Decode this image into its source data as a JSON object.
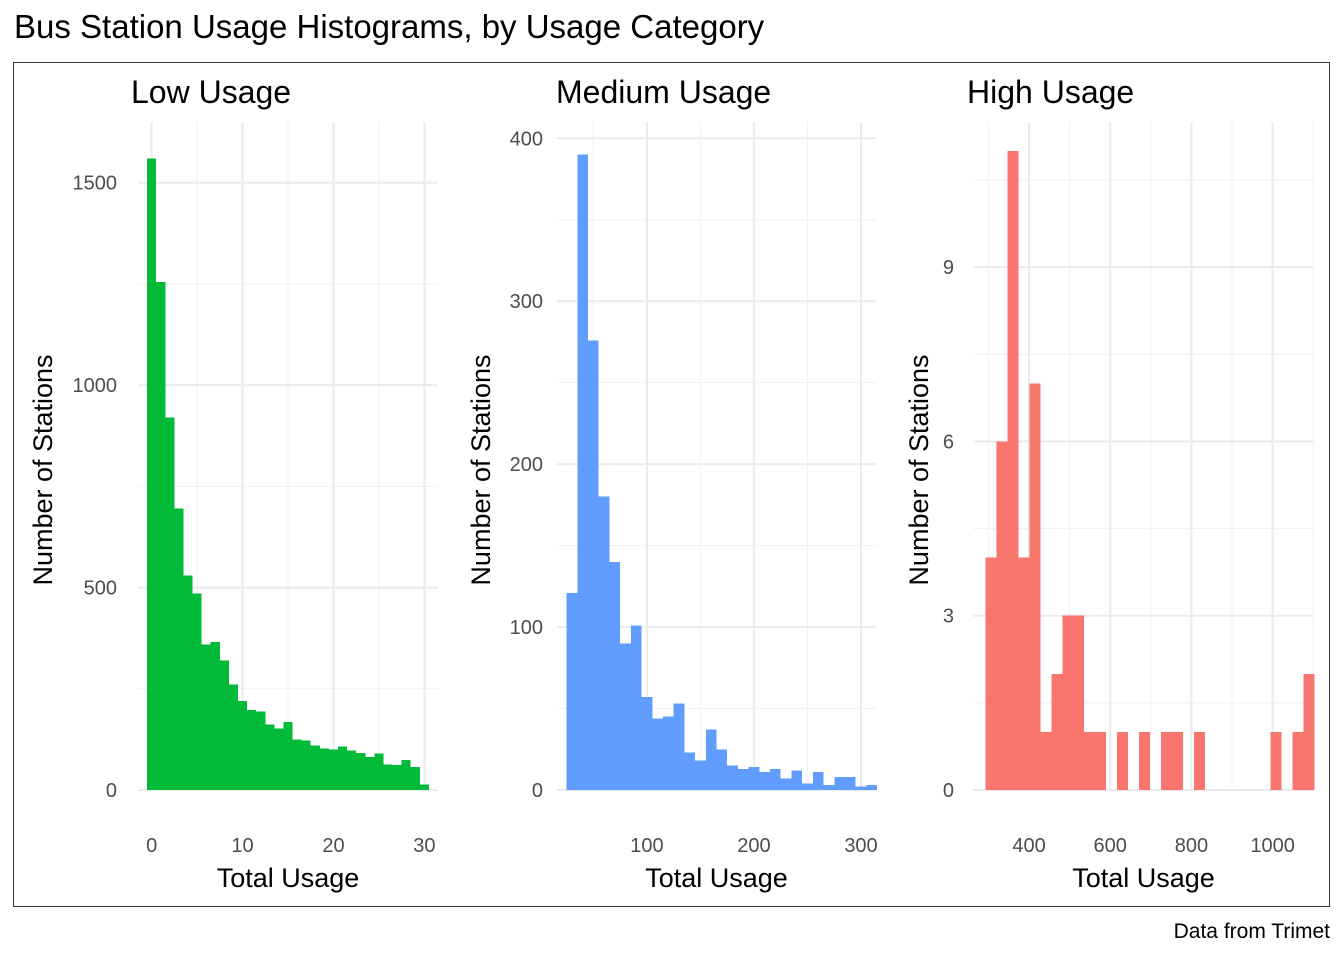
{
  "title": "Bus Station Usage Histograms, by Usage Category",
  "caption": "Data from Trimet",
  "chart_data": [
    {
      "type": "bar",
      "subtitle": "Low Usage",
      "xlabel": "Total Usage",
      "ylabel": "Number of Stations",
      "color": "#00BA38",
      "xlim": [
        -1.5,
        31.5
      ],
      "ylim": [
        0,
        1650
      ],
      "xticks": [
        0,
        10,
        20,
        30
      ],
      "yticks": [
        0,
        500,
        1000,
        1500
      ],
      "grid": true,
      "bins": [
        {
          "x0": -0.5,
          "x1": 0.5,
          "count": 1560
        },
        {
          "x0": 0.5,
          "x1": 1.5,
          "count": 1255
        },
        {
          "x0": 1.5,
          "x1": 2.5,
          "count": 920
        },
        {
          "x0": 2.5,
          "x1": 3.5,
          "count": 695
        },
        {
          "x0": 3.5,
          "x1": 4.5,
          "count": 530
        },
        {
          "x0": 4.5,
          "x1": 5.5,
          "count": 485
        },
        {
          "x0": 5.5,
          "x1": 6.5,
          "count": 360
        },
        {
          "x0": 6.5,
          "x1": 7.5,
          "count": 365
        },
        {
          "x0": 7.5,
          "x1": 8.5,
          "count": 320
        },
        {
          "x0": 8.5,
          "x1": 9.5,
          "count": 260
        },
        {
          "x0": 9.5,
          "x1": 10.5,
          "count": 220
        },
        {
          "x0": 10.5,
          "x1": 11.5,
          "count": 197
        },
        {
          "x0": 11.5,
          "x1": 12.5,
          "count": 194
        },
        {
          "x0": 12.5,
          "x1": 13.5,
          "count": 162
        },
        {
          "x0": 13.5,
          "x1": 14.5,
          "count": 152
        },
        {
          "x0": 14.5,
          "x1": 15.5,
          "count": 168
        },
        {
          "x0": 15.5,
          "x1": 16.5,
          "count": 125
        },
        {
          "x0": 16.5,
          "x1": 17.5,
          "count": 122
        },
        {
          "x0": 17.5,
          "x1": 18.5,
          "count": 110
        },
        {
          "x0": 18.5,
          "x1": 19.5,
          "count": 103
        },
        {
          "x0": 19.5,
          "x1": 20.5,
          "count": 100
        },
        {
          "x0": 20.5,
          "x1": 21.5,
          "count": 107
        },
        {
          "x0": 21.5,
          "x1": 22.5,
          "count": 97
        },
        {
          "x0": 22.5,
          "x1": 23.5,
          "count": 91
        },
        {
          "x0": 23.5,
          "x1": 24.5,
          "count": 82
        },
        {
          "x0": 24.5,
          "x1": 25.5,
          "count": 90
        },
        {
          "x0": 25.5,
          "x1": 26.5,
          "count": 63
        },
        {
          "x0": 26.5,
          "x1": 27.5,
          "count": 62
        },
        {
          "x0": 27.5,
          "x1": 28.5,
          "count": 74
        },
        {
          "x0": 28.5,
          "x1": 29.5,
          "count": 57
        },
        {
          "x0": 29.5,
          "x1": 30.5,
          "count": 14
        }
      ]
    },
    {
      "type": "bar",
      "subtitle": "Medium Usage",
      "xlabel": "Total Usage",
      "ylabel": "Number of Stations",
      "color": "#619CFF",
      "xlim": [
        16,
        314
      ],
      "ylim": [
        0,
        410
      ],
      "xticks": [
        100,
        200,
        300
      ],
      "yticks": [
        0,
        100,
        200,
        300,
        400
      ],
      "grid": true,
      "bins": [
        {
          "x0": 25,
          "x1": 35,
          "count": 121
        },
        {
          "x0": 35,
          "x1": 45,
          "count": 390
        },
        {
          "x0": 45,
          "x1": 55,
          "count": 276
        },
        {
          "x0": 55,
          "x1": 65,
          "count": 180
        },
        {
          "x0": 65,
          "x1": 75,
          "count": 140
        },
        {
          "x0": 75,
          "x1": 85,
          "count": 90
        },
        {
          "x0": 85,
          "x1": 95,
          "count": 101
        },
        {
          "x0": 95,
          "x1": 105,
          "count": 57
        },
        {
          "x0": 105,
          "x1": 115,
          "count": 44
        },
        {
          "x0": 115,
          "x1": 125,
          "count": 45
        },
        {
          "x0": 125,
          "x1": 135,
          "count": 53
        },
        {
          "x0": 135,
          "x1": 145,
          "count": 23
        },
        {
          "x0": 145,
          "x1": 155,
          "count": 18
        },
        {
          "x0": 155,
          "x1": 165,
          "count": 37
        },
        {
          "x0": 165,
          "x1": 175,
          "count": 25
        },
        {
          "x0": 175,
          "x1": 185,
          "count": 15
        },
        {
          "x0": 185,
          "x1": 195,
          "count": 13
        },
        {
          "x0": 195,
          "x1": 205,
          "count": 14
        },
        {
          "x0": 205,
          "x1": 215,
          "count": 11
        },
        {
          "x0": 215,
          "x1": 225,
          "count": 13
        },
        {
          "x0": 225,
          "x1": 235,
          "count": 7
        },
        {
          "x0": 235,
          "x1": 245,
          "count": 12
        },
        {
          "x0": 245,
          "x1": 255,
          "count": 4
        },
        {
          "x0": 255,
          "x1": 265,
          "count": 11
        },
        {
          "x0": 265,
          "x1": 275,
          "count": 3
        },
        {
          "x0": 275,
          "x1": 285,
          "count": 8
        },
        {
          "x0": 285,
          "x1": 295,
          "count": 8
        },
        {
          "x0": 295,
          "x1": 305,
          "count": 2
        },
        {
          "x0": 305,
          "x1": 315,
          "count": 3
        }
      ]
    },
    {
      "type": "bar",
      "subtitle": "High Usage",
      "xlabel": "Total Usage",
      "ylabel": "Number of Stations",
      "color": "#F8766D",
      "xlim": [
        262,
        1102
      ],
      "ylim": [
        0,
        11.5
      ],
      "xticks": [
        400,
        600,
        800,
        1000
      ],
      "yticks": [
        0,
        3,
        6,
        9
      ],
      "grid": true,
      "bins": [
        {
          "x0": 293,
          "x1": 320,
          "count": 4
        },
        {
          "x0": 320,
          "x1": 347,
          "count": 6
        },
        {
          "x0": 347,
          "x1": 374,
          "count": 11
        },
        {
          "x0": 374,
          "x1": 401,
          "count": 4
        },
        {
          "x0": 401,
          "x1": 428,
          "count": 7
        },
        {
          "x0": 428,
          "x1": 455,
          "count": 1
        },
        {
          "x0": 455,
          "x1": 482,
          "count": 2
        },
        {
          "x0": 482,
          "x1": 509,
          "count": 3
        },
        {
          "x0": 509,
          "x1": 536,
          "count": 3
        },
        {
          "x0": 536,
          "x1": 563,
          "count": 1
        },
        {
          "x0": 563,
          "x1": 590,
          "count": 1
        },
        {
          "x0": 590,
          "x1": 617,
          "count": 0
        },
        {
          "x0": 617,
          "x1": 644,
          "count": 1
        },
        {
          "x0": 644,
          "x1": 671,
          "count": 0
        },
        {
          "x0": 671,
          "x1": 698,
          "count": 1
        },
        {
          "x0": 698,
          "x1": 725,
          "count": 0
        },
        {
          "x0": 725,
          "x1": 752,
          "count": 1
        },
        {
          "x0": 752,
          "x1": 779,
          "count": 1
        },
        {
          "x0": 779,
          "x1": 806,
          "count": 0
        },
        {
          "x0": 806,
          "x1": 833,
          "count": 1
        },
        {
          "x0": 833,
          "x1": 860,
          "count": 0
        },
        {
          "x0": 860,
          "x1": 887,
          "count": 0
        },
        {
          "x0": 887,
          "x1": 914,
          "count": 0
        },
        {
          "x0": 914,
          "x1": 941,
          "count": 0
        },
        {
          "x0": 941,
          "x1": 968,
          "count": 0
        },
        {
          "x0": 968,
          "x1": 995,
          "count": 0
        },
        {
          "x0": 995,
          "x1": 1022,
          "count": 1
        },
        {
          "x0": 1022,
          "x1": 1049,
          "count": 0
        },
        {
          "x0": 1049,
          "x1": 1076,
          "count": 1
        },
        {
          "x0": 1076,
          "x1": 1103,
          "count": 2
        }
      ]
    }
  ]
}
